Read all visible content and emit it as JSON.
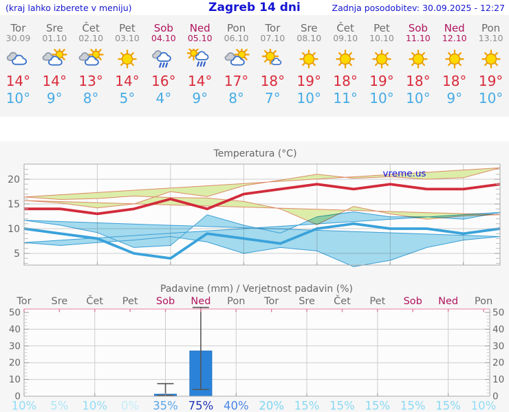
{
  "header": {
    "left_note": "(kraj lahko izberete v meniju)",
    "title": "Zagreb 14 dni",
    "updated": "Zadnja posodobitev: 30.09.2025 - 12:27"
  },
  "colors": {
    "header_blue": "#1414d2",
    "weekday": "#6b6b6b",
    "date_gray": "#8c8c8c",
    "weekend": "#b0145c",
    "tmax_red": "#d92a3a",
    "tmin_blue": "#45abe5",
    "grid": "#cccccc",
    "axis": "#aaaaaa",
    "tick_minor": "#bbbbbb",
    "label_gray": "#666666",
    "band_max_fill": "#dcedaa",
    "band_max_edge": "#dd8a66",
    "band_min_fill": "#a6ddf1",
    "band_min_edge": "#3aa0d8",
    "line_max": "#d22b3b",
    "line_min": "#3aa2da",
    "bar_fill": "#2b83d9",
    "bar_edge": "#2271bd",
    "whisker": "#555555",
    "precip_top_border": "#f0a8bc",
    "precip_top_tick": "#e27d9a",
    "watermark_blue": "#1111e0",
    "plot_bg": "#fcfcfc"
  },
  "days": [
    {
      "name": "Tor",
      "date": "30.09",
      "weekend": false,
      "icon": "cloudy",
      "tmax": "14°",
      "tmin": "10°",
      "precip_prob": "10%",
      "prob_color": "#93dcf5"
    },
    {
      "name": "Sre",
      "date": "01.10",
      "weekend": false,
      "icon": "partly",
      "tmax": "14°",
      "tmin": "9°",
      "precip_prob": "5%",
      "prob_color": "#aee6f8"
    },
    {
      "name": "Čet",
      "date": "02.10",
      "weekend": false,
      "icon": "partly",
      "tmax": "13°",
      "tmin": "8°",
      "precip_prob": "10%",
      "prob_color": "#93dcf5"
    },
    {
      "name": "Pet",
      "date": "03.10",
      "weekend": false,
      "icon": "sunny",
      "tmax": "14°",
      "tmin": "5°",
      "precip_prob": "0%",
      "prob_color": "#c4edfa"
    },
    {
      "name": "Sob",
      "date": "04.10",
      "weekend": true,
      "icon": "rain",
      "tmax": "16°",
      "tmin": "4°",
      "precip_prob": "35%",
      "prob_color": "#58a6e8"
    },
    {
      "name": "Ned",
      "date": "05.10",
      "weekend": true,
      "icon": "sun-rain",
      "tmax": "14°",
      "tmin": "9°",
      "precip_prob": "75%",
      "prob_color": "#2436b5"
    },
    {
      "name": "Pon",
      "date": "06.10",
      "weekend": false,
      "icon": "partly",
      "tmax": "17°",
      "tmin": "8°",
      "precip_prob": "40%",
      "prob_color": "#4a87e9"
    },
    {
      "name": "Tor",
      "date": "07.10",
      "weekend": false,
      "icon": "mostly-sunny",
      "tmax": "18°",
      "tmin": "7°",
      "precip_prob": "20%",
      "prob_color": "#7fd4f2"
    },
    {
      "name": "Sre",
      "date": "08.10",
      "weekend": false,
      "icon": "sunny",
      "tmax": "19°",
      "tmin": "10°",
      "precip_prob": "15%",
      "prob_color": "#89d8f3"
    },
    {
      "name": "Čet",
      "date": "09.10",
      "weekend": false,
      "icon": "sunny",
      "tmax": "18°",
      "tmin": "11°",
      "precip_prob": "15%",
      "prob_color": "#89d8f3"
    },
    {
      "name": "Pet",
      "date": "10.10",
      "weekend": false,
      "icon": "sunny",
      "tmax": "19°",
      "tmin": "10°",
      "precip_prob": "15%",
      "prob_color": "#89d8f3"
    },
    {
      "name": "Sob",
      "date": "11.10",
      "weekend": true,
      "icon": "sunny",
      "tmax": "18°",
      "tmin": "10°",
      "precip_prob": "15%",
      "prob_color": "#89d8f3"
    },
    {
      "name": "Ned",
      "date": "12.10",
      "weekend": true,
      "icon": "sunny",
      "tmax": "18°",
      "tmin": "9°",
      "precip_prob": "15%",
      "prob_color": "#89d8f3"
    },
    {
      "name": "Pon",
      "date": "13.10",
      "weekend": false,
      "icon": "sunny",
      "tmax": "19°",
      "tmin": "10°",
      "precip_prob": "10%",
      "prob_color": "#93dcf5"
    }
  ],
  "chart_data": [
    {
      "type": "line",
      "title": "Temperatura (°C)",
      "watermark": "vreme.us",
      "categories": [
        "Tor 30.09",
        "Sre 01.10",
        "Čet 02.10",
        "Pet 03.10",
        "Sob 04.10",
        "Ned 05.10",
        "Pon 06.10",
        "Tor 07.10",
        "Sre 08.10",
        "Čet 09.10",
        "Pet 10.10",
        "Sob 11.10",
        "Ned 12.10",
        "Pon 13.10"
      ],
      "yticks": [
        5,
        10,
        15,
        20
      ],
      "ylim": [
        2.6,
        23.1
      ],
      "grid": true,
      "series": [
        {
          "name": "tmax",
          "values": [
            14,
            14,
            13,
            14,
            16,
            14,
            17,
            18,
            19,
            18,
            19,
            18,
            18,
            19
          ]
        },
        {
          "name": "tmax_hi",
          "values": [
            15.7,
            15.2,
            14.2,
            15.0,
            17.5,
            16.5,
            18.7,
            19.8,
            21.0,
            20.2,
            20.5,
            20.0,
            20.3,
            22.3
          ]
        },
        {
          "name": "tmax_lo",
          "values": [
            12.8,
            12.6,
            11.9,
            13.0,
            14.5,
            10.8,
            14.0,
            15.5,
            16.2,
            16.3,
            16.6,
            16.1,
            15.9,
            16.4
          ]
        },
        {
          "name": "tmin",
          "values": [
            10,
            9,
            8,
            5,
            4,
            9,
            8,
            7,
            10,
            11,
            10,
            10,
            9,
            10
          ]
        },
        {
          "name": "tmin_hi",
          "values": [
            11.7,
            10.7,
            9.2,
            6.2,
            6.6,
            12.8,
            10.7,
            9.1,
            12.4,
            13.4,
            12.4,
            12.4,
            11.9,
            13.3
          ]
        },
        {
          "name": "tmin_lo",
          "values": [
            8.4,
            7.7,
            6.2,
            3.6,
            2.3,
            5.5,
            6.2,
            5.0,
            7.3,
            8.4,
            7.7,
            7.2,
            6.6,
            7.2
          ]
        }
      ]
    },
    {
      "type": "bar",
      "title": "Padavine (mm) / Verjetnost padavin (%)",
      "categories": [
        "Tor",
        "Sre",
        "Čet",
        "Pet",
        "Sob",
        "Ned",
        "Pon",
        "Tor",
        "Sre",
        "Čet",
        "Pet",
        "Sob",
        "Ned",
        "Pon"
      ],
      "yticks": [
        0,
        10,
        20,
        30,
        40,
        50
      ],
      "ylim": [
        0,
        52
      ],
      "grid": true,
      "values": [
        0,
        0,
        0,
        0,
        1.2,
        27,
        0,
        0,
        0,
        0,
        0,
        0,
        0,
        0
      ],
      "range_lo": [
        null,
        null,
        null,
        null,
        0.5,
        4,
        null,
        null,
        null,
        null,
        null,
        null,
        null,
        null
      ],
      "range_hi": [
        null,
        null,
        null,
        null,
        7.5,
        53,
        null,
        null,
        null,
        null,
        null,
        null,
        null,
        null
      ],
      "probabilities_pct": [
        10,
        5,
        10,
        0,
        35,
        75,
        40,
        20,
        15,
        15,
        15,
        15,
        15,
        10
      ]
    }
  ]
}
